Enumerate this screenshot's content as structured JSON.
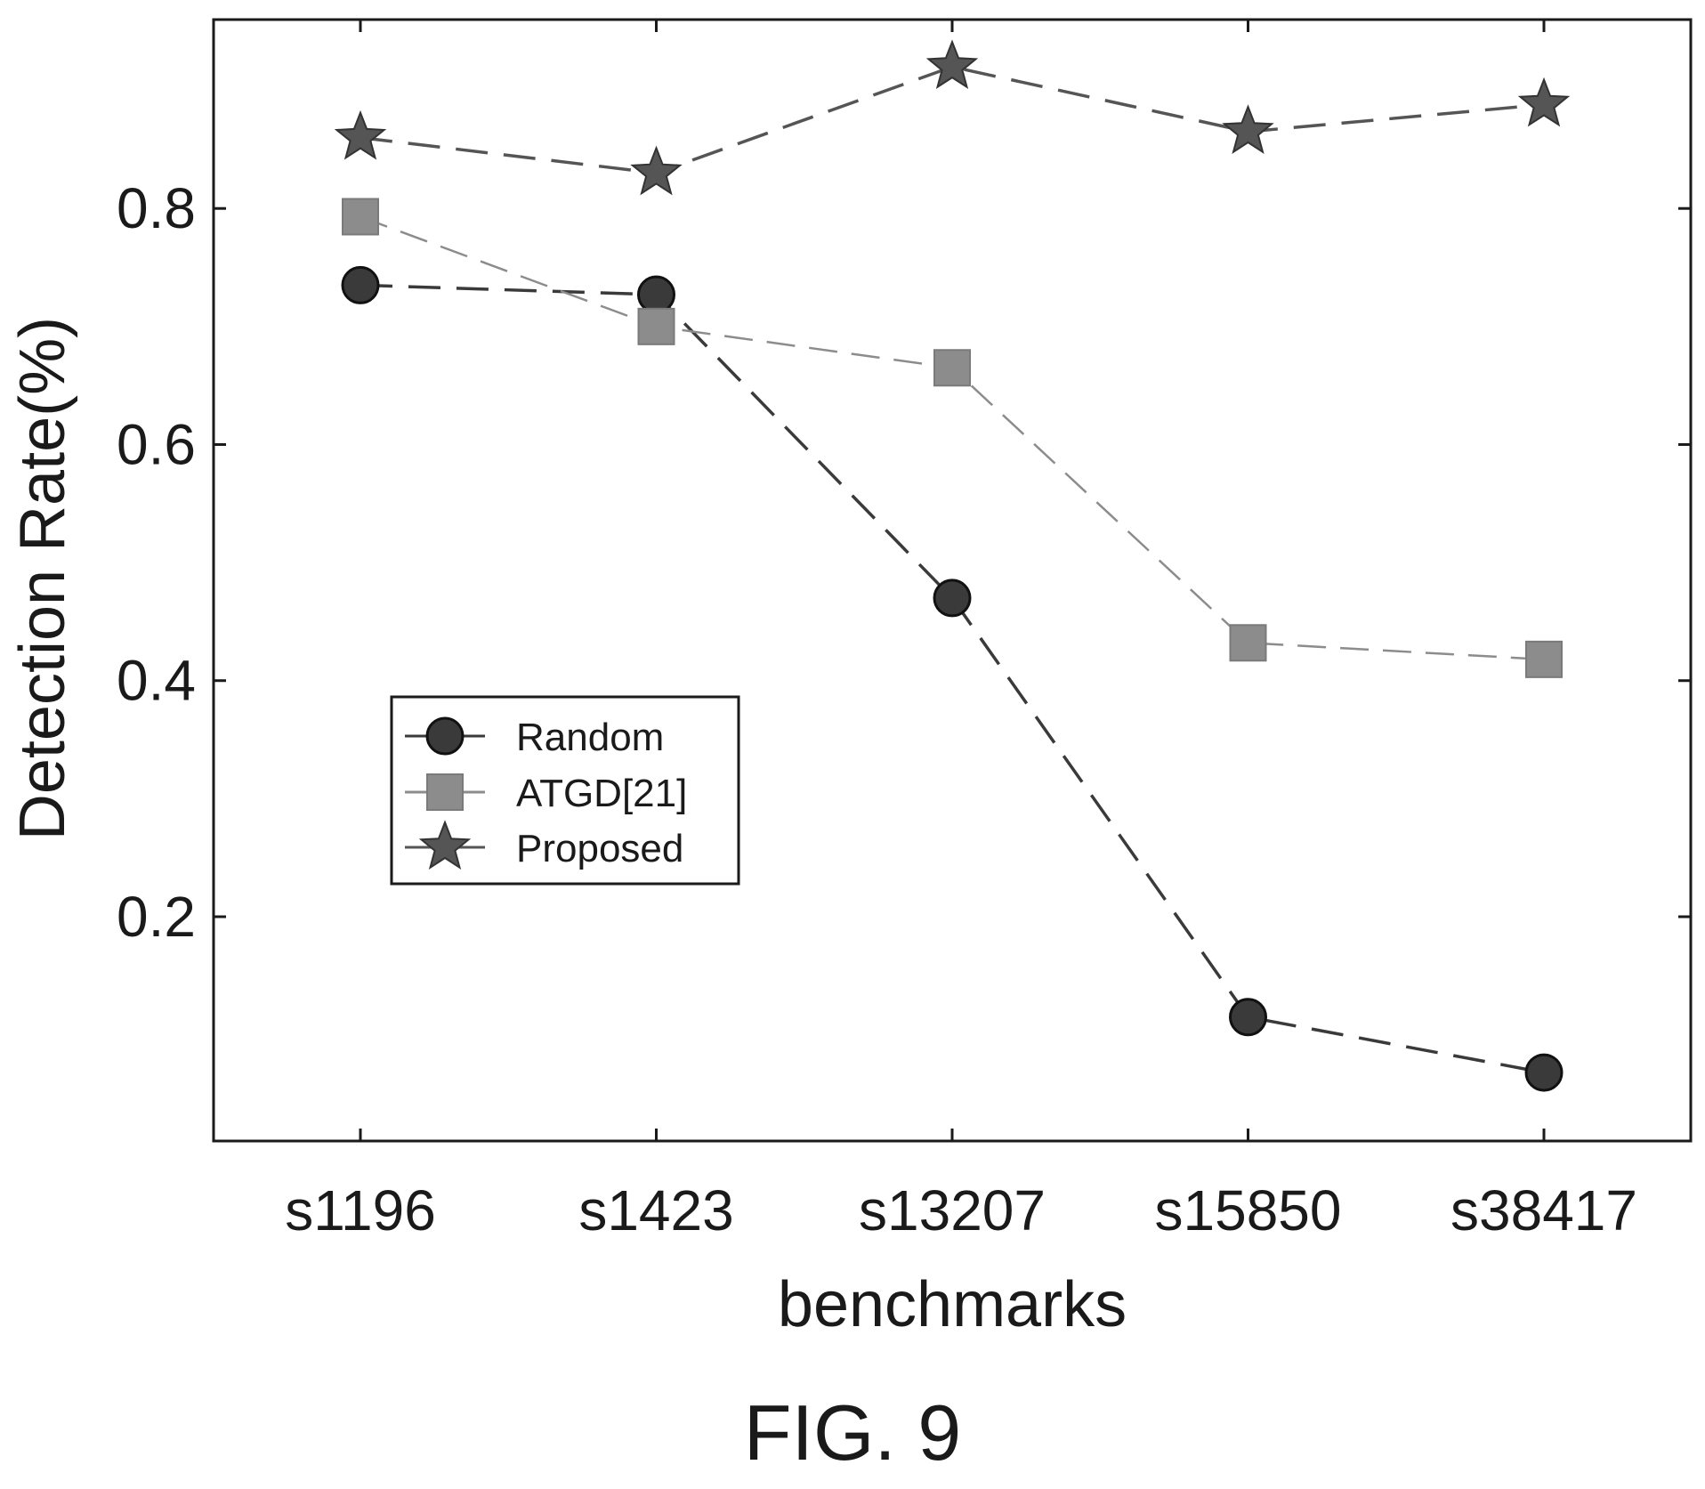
{
  "chart_data": {
    "type": "line",
    "title": "",
    "xlabel": "benchmarks",
    "ylabel": "Detection Rate(%)",
    "categories": [
      "s1196",
      "s1423",
      "s13207",
      "s15850",
      "s38417"
    ],
    "ylim": [
      0.01,
      0.96
    ],
    "yticks": [
      0.2,
      0.4,
      0.6,
      0.8
    ],
    "ytick_labels": [
      "0.2",
      "0.4",
      "0.6",
      "0.8"
    ],
    "grid": false,
    "legend_position": "middle-left",
    "series": [
      {
        "name": "Random",
        "values": [
          0.735,
          0.727,
          0.47,
          0.115,
          0.068
        ],
        "marker": "circle",
        "line_style": "dashed",
        "color": "#3a3a3a"
      },
      {
        "name": "ATGD[21]",
        "values": [
          0.793,
          0.7,
          0.665,
          0.432,
          0.418
        ],
        "marker": "square",
        "line_style": "dashed",
        "color": "#8c8c8c"
      },
      {
        "name": "Proposed",
        "values": [
          0.86,
          0.83,
          0.92,
          0.865,
          0.888
        ],
        "marker": "star",
        "line_style": "dashed",
        "color": "#555555"
      }
    ]
  },
  "figure": {
    "caption": "FIG. 9"
  }
}
